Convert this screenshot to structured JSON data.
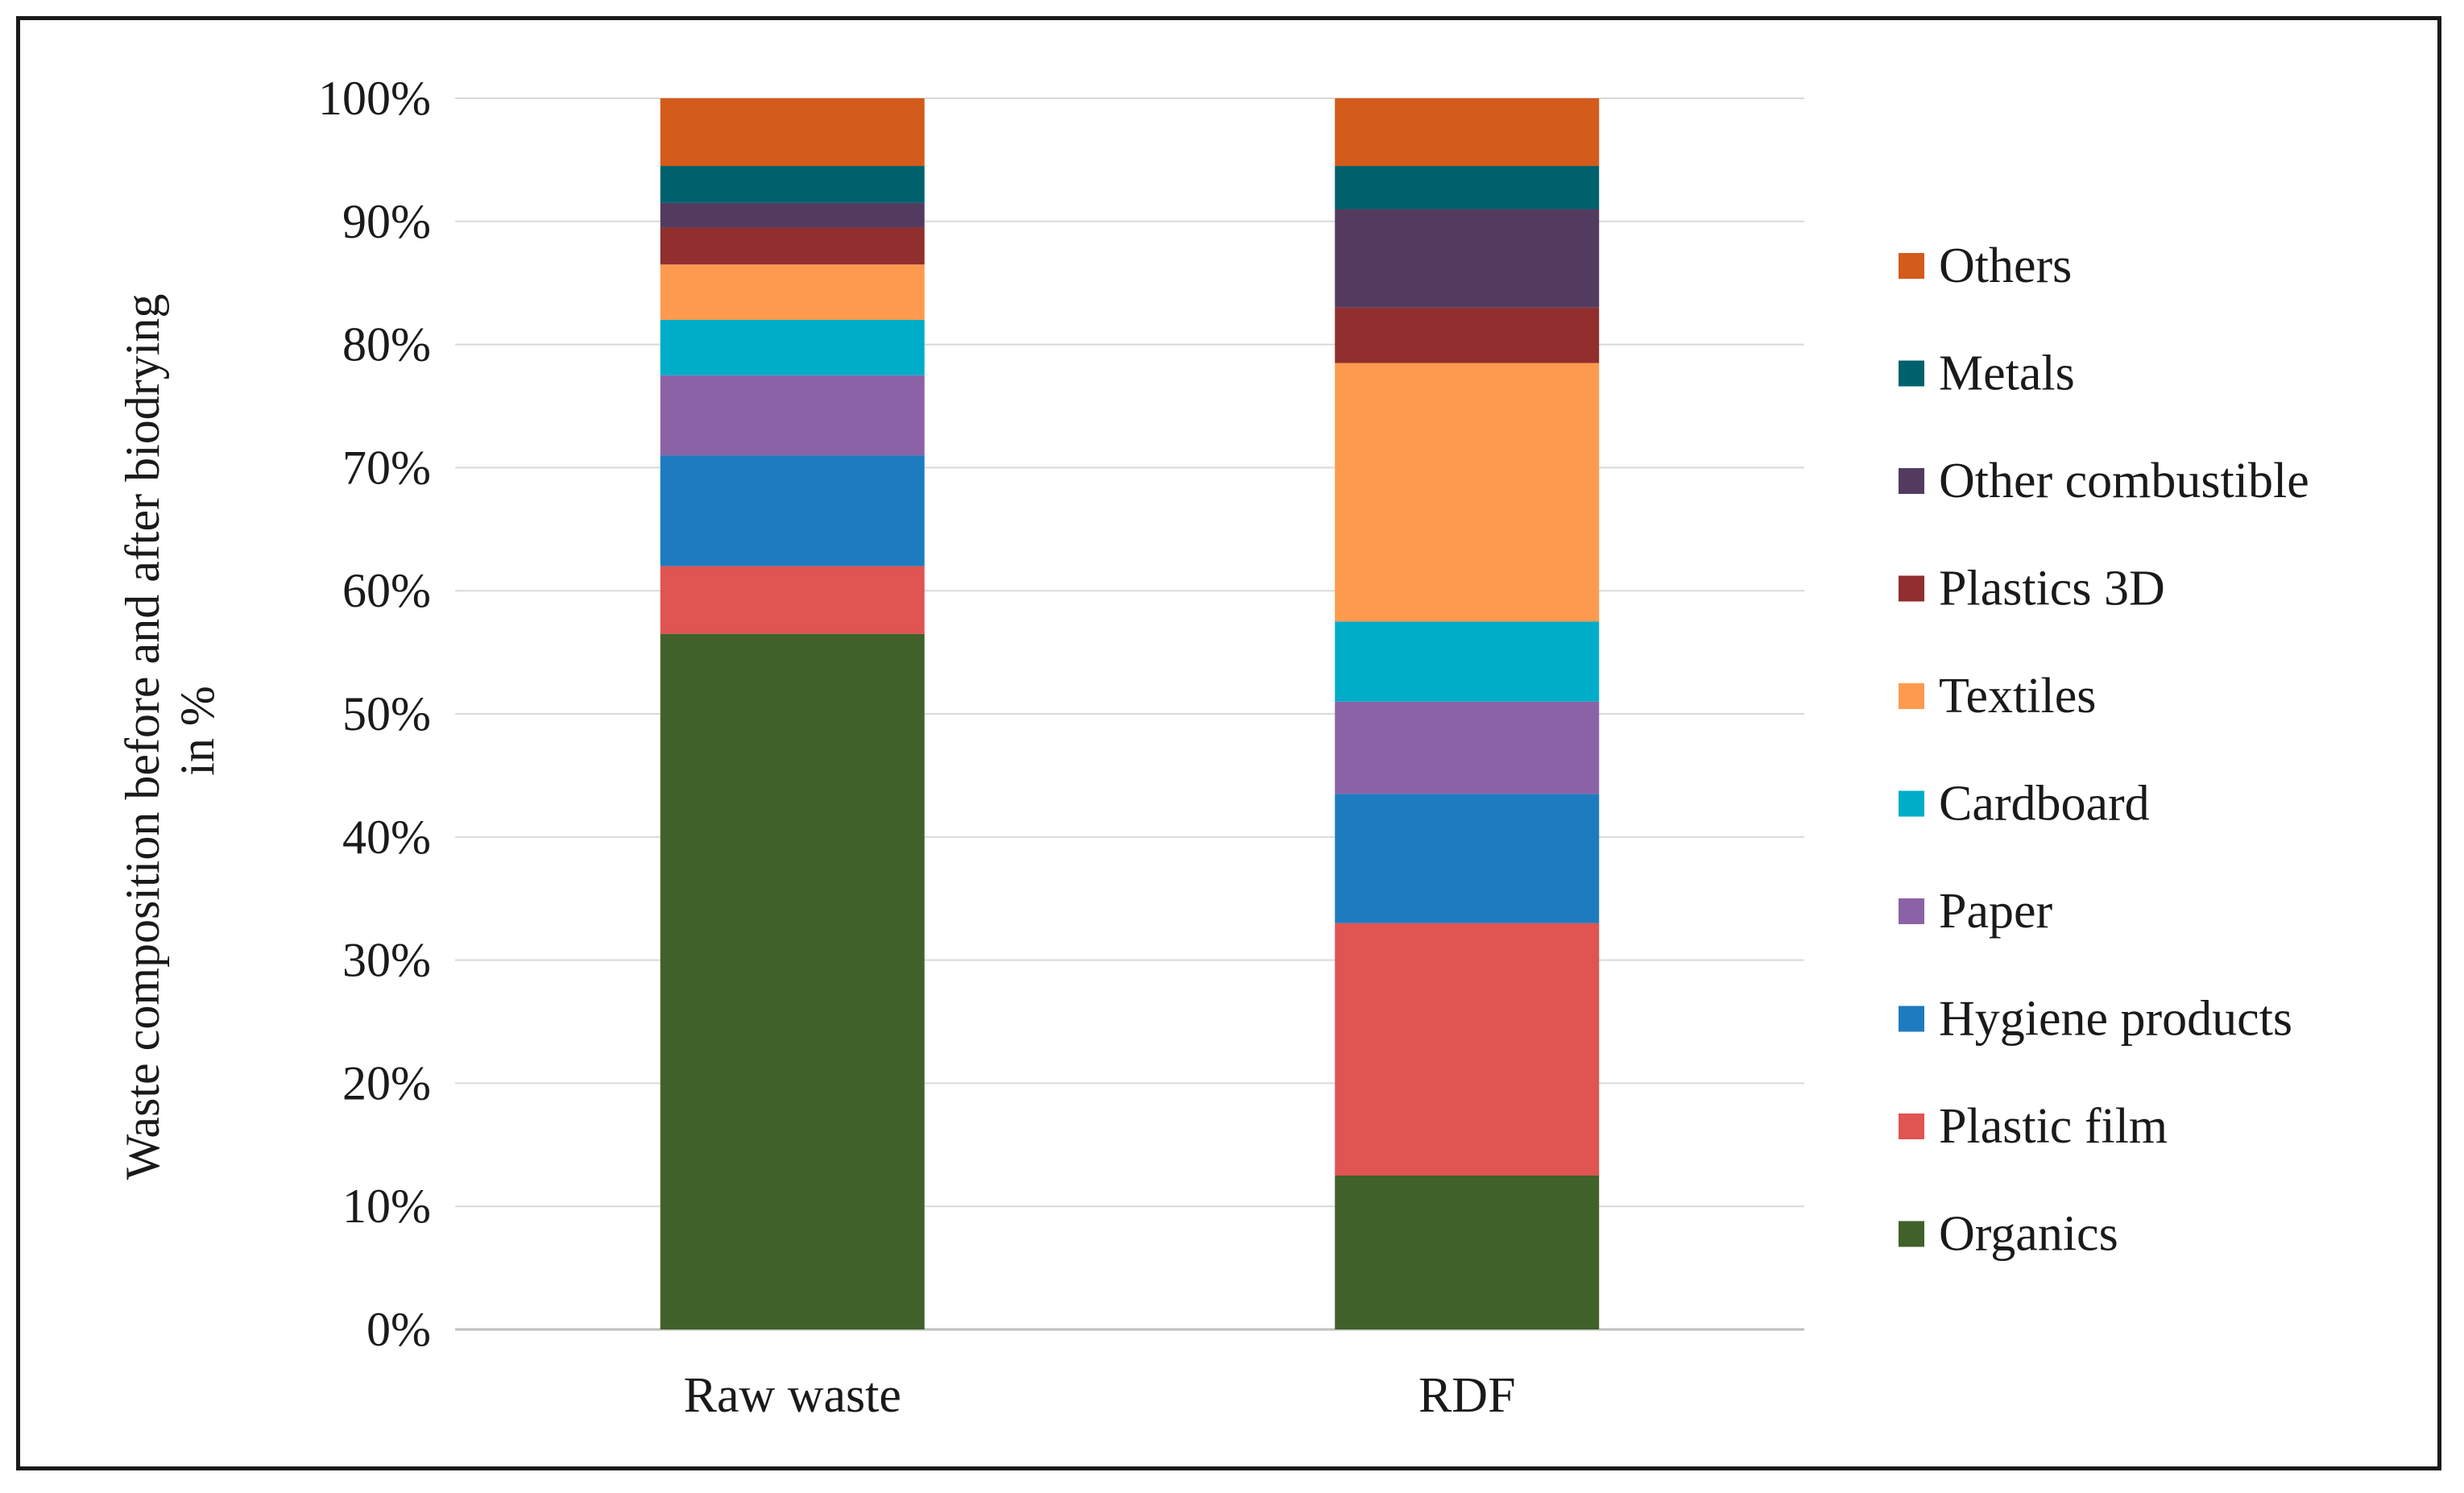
{
  "chart_data": {
    "type": "bar",
    "stacked": true,
    "title": "",
    "xlabel": "",
    "ylabel": "Waste composition  before and after biodrying",
    "ylabel_line2": "in %",
    "ylim": [
      0,
      100
    ],
    "yticks": [
      "0%",
      "10%",
      "20%",
      "30%",
      "40%",
      "50%",
      "60%",
      "70%",
      "80%",
      "90%",
      "100%"
    ],
    "legend_position": "right",
    "grid": true,
    "categories": [
      "Raw waste",
      "RDF"
    ],
    "series": [
      {
        "name": "Organics",
        "color": "#41612a",
        "values": [
          56.5,
          12.5
        ]
      },
      {
        "name": "Plastic film",
        "color": "#e05451",
        "values": [
          5.5,
          20.5
        ]
      },
      {
        "name": "Hygiene products",
        "color": "#1f7bc0",
        "values": [
          9.0,
          10.5
        ]
      },
      {
        "name": "Paper",
        "color": "#8c62a6",
        "values": [
          6.5,
          7.5
        ]
      },
      {
        "name": "Cardboard",
        "color": "#00adc8",
        "values": [
          4.5,
          6.5
        ]
      },
      {
        "name": "Textiles",
        "color": "#fe9a4f",
        "values": [
          4.5,
          21.0
        ]
      },
      {
        "name": "Plastics 3D",
        "color": "#912e2e",
        "values": [
          3.0,
          4.5
        ]
      },
      {
        "name": "Other combustible",
        "color": "#533b60",
        "values": [
          2.0,
          8.0
        ]
      },
      {
        "name": "Metals",
        "color": "#00616d",
        "values": [
          3.0,
          3.5
        ]
      },
      {
        "name": "Others",
        "color": "#d35b1b",
        "values": [
          5.5,
          5.5
        ]
      }
    ]
  }
}
